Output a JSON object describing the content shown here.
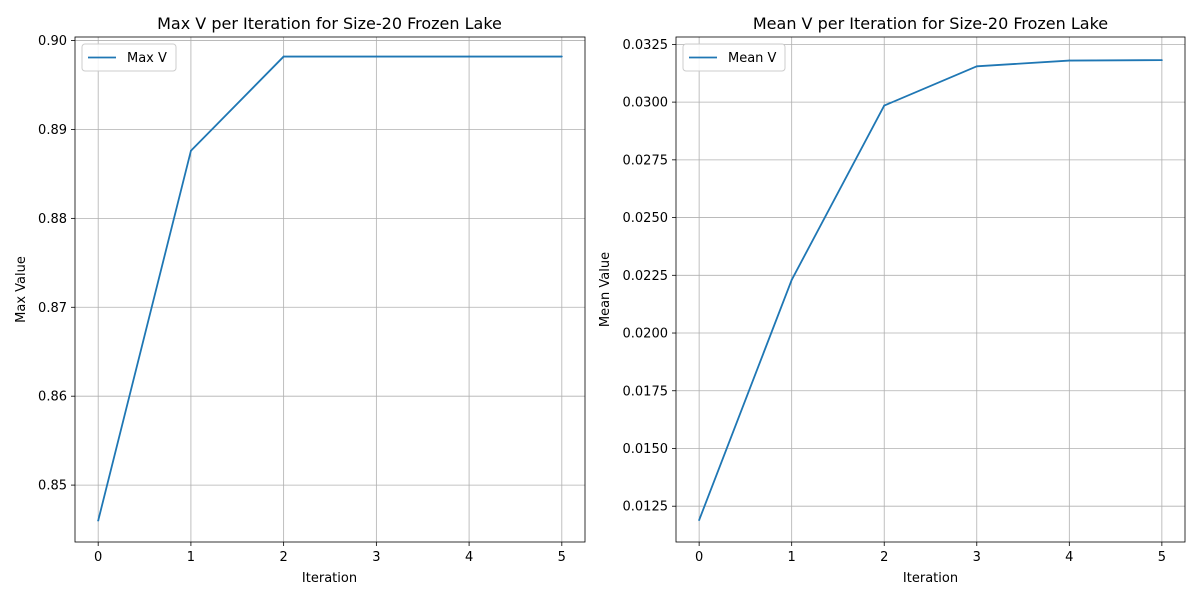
{
  "chart_data": [
    {
      "type": "line",
      "title": "Max V per Iteration for Size-20 Frozen Lake",
      "xlabel": "Iteration",
      "ylabel": "Max Value",
      "x": [
        0,
        1,
        2,
        3,
        4,
        5
      ],
      "xticks": [
        "0",
        "1",
        "2",
        "3",
        "4",
        "5"
      ],
      "yticks": [
        "0.85",
        "0.86",
        "0.87",
        "0.88",
        "0.89",
        "0.90"
      ],
      "xlim": [
        -0.25,
        5.25
      ],
      "ylim": [
        0.8436,
        0.9004
      ],
      "grid": true,
      "legend": "upper left",
      "series": [
        {
          "name": "Max V",
          "color": "#1f77b4",
          "values": [
            0.846,
            0.8876,
            0.8982,
            0.8982,
            0.8982,
            0.8982
          ]
        }
      ]
    },
    {
      "type": "line",
      "title": "Mean V per Iteration for Size-20 Frozen Lake",
      "xlabel": "Iteration",
      "ylabel": "Mean Value",
      "x": [
        0,
        1,
        2,
        3,
        4,
        5
      ],
      "xticks": [
        "0",
        "1",
        "2",
        "3",
        "4",
        "5"
      ],
      "yticks": [
        "0.0125",
        "0.0150",
        "0.0175",
        "0.0200",
        "0.0225",
        "0.0250",
        "0.0275",
        "0.0300",
        "0.0325"
      ],
      "xlim": [
        -0.25,
        5.25
      ],
      "ylim": [
        0.01095,
        0.03282
      ],
      "grid": true,
      "legend": "upper left",
      "series": [
        {
          "name": "Mean V",
          "color": "#1f77b4",
          "values": [
            0.0119,
            0.0223,
            0.02985,
            0.03155,
            0.0318,
            0.03182
          ]
        }
      ]
    }
  ]
}
